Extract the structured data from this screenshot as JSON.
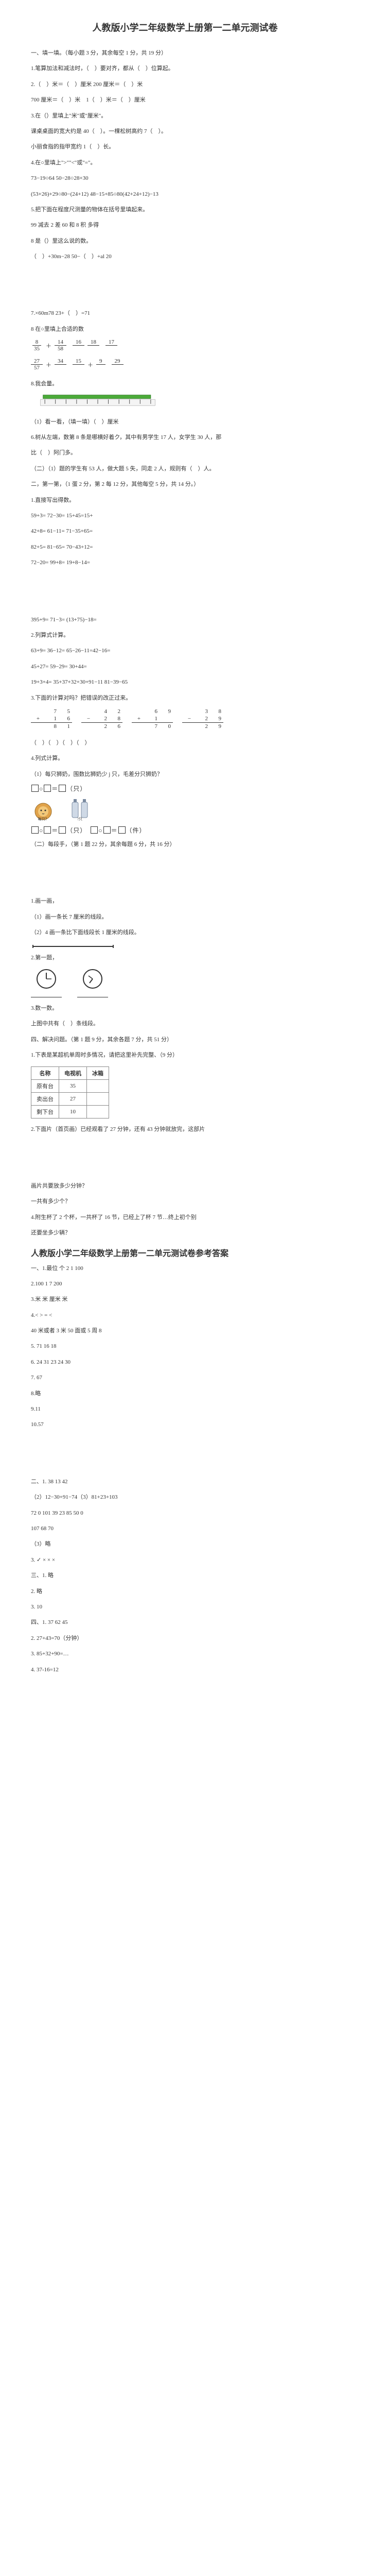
{
  "doc": {
    "title": "人教版小学二年级数学上册第一二单元测试卷",
    "answer_title": "人教版小学二年级数学上册第一二单元测试卷参考答案",
    "sections": {
      "s1_head": "一、填一填。（每小题 3 分，其余每空 1 分，共 19 分）",
      "s1_1": "1.笔算加法和减法时，（　）要对齐，都从（　）位算起。",
      "s1_2": "2.（　）米＝（　）厘米  200 厘米＝（　）米",
      "s1_3": "700 厘米＝（　）米　1（　）米＝（　）厘米",
      "s1_4": "3.在（）里填上\"米\"或\"厘米\"。",
      "s1_5": "课桌桌面的宽大约是 40（　）。一棵松树高约 7（　）。",
      "s1_6": "小丽食指的指甲宽约 1（　）长。",
      "s1_7": "4.在○里填上\">\"\"<\"或\"=\"。",
      "s1_8": "73−19○64  50−28○28+30",
      "s1_9": "(53+26)+29○80−(24+12)  48−15+85○80(42+24+12)−13",
      "s1_10": "5.把下面在程度尺测量的物体在括号里填起来。",
      "s1_11": "99 减去 2 差 60 和 8 积 多得",
      "s1_12": "8 是（）里这么说的数。",
      "s1_13": "（　）+30m−28 50−（　）+al 20",
      "sFrac": {
        "header": "7.×60m78 23+（　）=71",
        "parts": [
          {
            "num": "8",
            "den": "35",
            "mid": "＋",
            "num2": "14",
            "den2": "58"
          },
          {
            "num": "16",
            "den": "",
            "mid": "",
            "num2": "18",
            "den2": ""
          },
          {
            "num": "17",
            "den": "",
            "mid": "",
            "num2": "",
            "den2": ""
          }
        ],
        "row2": [
          {
            "num": "27",
            "den": "57",
            "mid": "＋",
            "num2": "34",
            "den2": ""
          },
          {
            "num": "15",
            "den": "",
            "mid": "＋",
            "num2": "9",
            "den2": ""
          },
          {
            "num": "29",
            "den": "",
            "mid": "",
            "num2": "",
            "den2": ""
          }
        ]
      },
      "s1_14": "8 在○里填上合适的数",
      "s1_15": "8.我会量。",
      "ruler": {
        "bar_color": "#4cab3a",
        "start": 0,
        "end": 10,
        "major_ticks": 11,
        "line_color": "#333333",
        "tick_color": "#333333"
      },
      "s1_16": "（1）看一看，（填一填）（　）厘米",
      "s1_17": "6.树从左端，数第 8 条是哪横好着ク，其中有男学生 17 人，女学生 30 人，那",
      "s1_18": "比（　）阿门多。",
      "s1_19": "（二）（1）题的学生有 53 人，做大题 5 失，同走 2 人，规则有（　）人。",
      "s2_head": "二，第一第，（1 蛋 2 分，第 2 每 12 分，其他每空 5 分，共 14 分。）",
      "s2_1": "1.直接写出得数。",
      "s2_2": "59+3=  72−30=  15+45=15+",
      "s2_3": "42+8=  61−11=  71−35+65=",
      "s2_4": "82+5=  81−65=  70−43+12=",
      "s2_5": "72−20=  99+8=  19+8−14=",
      "s2_6": "395+9=  71−3=  (13+75)−18=",
      "s2_7": "2.列算式计算。",
      "s2_8": "63+9=  36−12=  65−26−11=42−16=",
      "s2_9": "45+27=  59−29=  30+44=",
      "s2_10": "19+3+4=  35+37+32+30+91−11 81−39−65",
      "s2_11": "3.下面的计算对吗？把错误的改正过来。",
      "multiplication_check": {
        "cols": 4,
        "problems": [
          {
            "a": [
              "",
              "7",
              "5"
            ],
            "b": [
              "+",
              "1",
              "6"
            ],
            "r": [
              "",
              "8",
              "1"
            ]
          },
          {
            "a": [
              "",
              "4",
              "2"
            ],
            "b": [
              "−",
              "2",
              "8"
            ],
            "r": [
              "",
              "2",
              "6"
            ]
          },
          {
            "a": [
              "",
              "6",
              "9"
            ],
            "b": [
              "+",
              "1",
              ""
            ],
            "r": [
              "",
              "7",
              "0"
            ]
          },
          {
            "a": [
              "",
              "3",
              "8"
            ],
            "b": [
              "−",
              "2",
              "9"
            ],
            "r": [
              "",
              "2",
              "9"
            ]
          }
        ],
        "border_color": "#333333"
      },
      "s2_12": "（　）（　）（　）（　）",
      "s2_13": "4.列式计算。",
      "s2_14": "（1）每只狮奶，围数比狮奶少 j 只，毛差分只狮奶？",
      "box1": "□○□=□（只）",
      "lion_label": "每只？",
      "bottle_label": "?只",
      "box2": "□○□=□（只）□○□=□（件）",
      "s2_15": "（二）每段手，（第 1 题 22 分，其余每题 6 分，共 16 分）",
      "s3_head": "",
      "s3_1": "1.画一画，",
      "s3_2": "（1）画一条长 7 厘米的线段。",
      "s3_3": "（2）4 画一条比下面线段长 1 厘米的线段。",
      "seg_color": "#333333",
      "s3_4": "2.第一题，",
      "clocks": [
        {
          "hour": 12,
          "minute": 15,
          "dial": "#ffffff",
          "hand": "#333333",
          "frame": "#333333"
        },
        {
          "hour": 7,
          "minute": 40,
          "dial": "#ffffff",
          "hand": "#333333",
          "frame": "#333333"
        }
      ],
      "s3_5": "3.数一数。",
      "s3_6": "上图中共有（　）条线段。",
      "s4_head": "四、解决问题。（第 1 题 9 分，其余各题 7 分，共 51 分）",
      "s4_1": "1.下表是某超机单周时多情况，请把这里补先完整、（9 分）",
      "table": {
        "headers": [
          "名称",
          "电视机",
          "冰箱"
        ],
        "rows": [
          [
            "原有台",
            "35",
            ""
          ],
          [
            "卖出台",
            "27",
            ""
          ],
          [
            "剩下台",
            "10",
            ""
          ]
        ],
        "border_color": "#8a8a8a"
      },
      "s4_2": "2.下面片（首页画）已经观看了 27 分钟，还有 43 分钟就放完，这部片",
      "s4_3": "画片共要放多少分钟？",
      "s4_4": "一共有多少个？",
      "s4_5": "4.附生杯了 2 个杯，一共杯了 16 节，已经上了杯 7 节…终上初个别",
      "s4_6": "还要坐多少辆？",
      "ans": {
        "a1_head": "一、1.最位 个  2 1 100",
        "a1_2": "2.100 1  7 200",
        "a1_3": "3.米  米  厘米 米",
        "a1_4": "4.< > = <",
        "a1_5": "40 米或者 3 米 50 面或 5 周 8",
        "a1_6": "5. 71 16 18",
        "a1_7": "6. 24 31 23 24 30",
        "a1_8": "7. 67",
        "a1_9": "8.略",
        "a1_10": "9.11",
        "a1_11": "10.57",
        "a2_head": "二、1. 38 13 42",
        "a2_2": "（2）12−30+91−74（3）81+23+103",
        "a2_3": "72 0 101 39 23 85 50 0",
        "a2_4": "107 68 70",
        "a2_5": "（3）略",
        "a2_6": "3. ✓ × × ×",
        "a2_7": "三、1. 略",
        "a2_8": "2. 略",
        "a2_9": "3. 10",
        "a3_head": "四、1. 37 62 45",
        "a3_2": "2. 27+43=70（分钟）",
        "a3_3": "3. 85+32+90=…",
        "a3_4": "4. 37-16=12"
      }
    }
  },
  "style": {
    "page_bg": "#ffffff",
    "text_color": "#333333",
    "title_fontsize": 18,
    "body_fontsize": 11,
    "ruler_green": "#4cab3a"
  }
}
